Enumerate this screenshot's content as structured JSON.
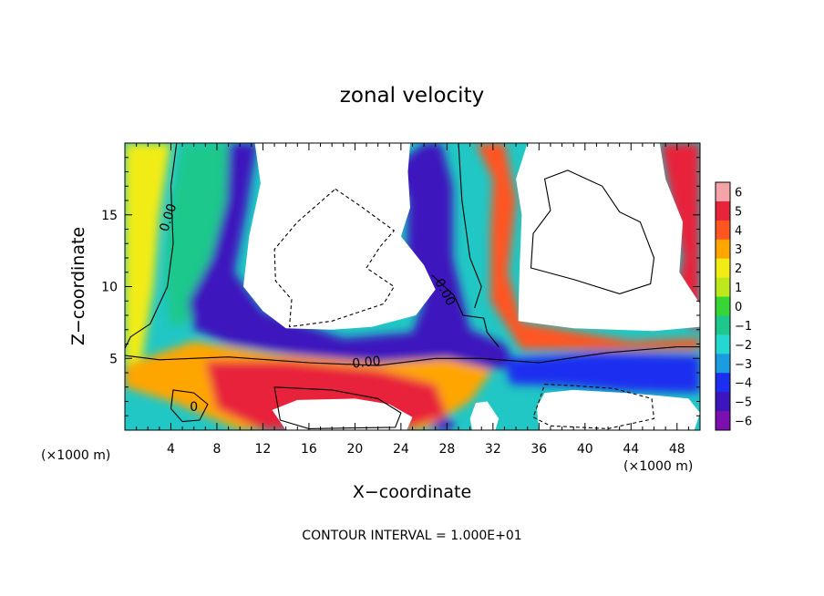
{
  "chart_data": {
    "type": "heatmap",
    "title": "zonal velocity",
    "xlabel": "X−coordinate",
    "ylabel": "Z−coordinate",
    "x_unit_note": "(×1000 m)",
    "z_unit_note": "(×1000 m)",
    "footer": "CONTOUR INTERVAL = 1.000E+01",
    "xlim": [
      0,
      50
    ],
    "ylim": [
      0,
      20
    ],
    "x_ticks": [
      4,
      8,
      12,
      16,
      20,
      24,
      28,
      32,
      36,
      40,
      44,
      48
    ],
    "y_ticks": [
      5,
      10,
      15
    ],
    "grid": false,
    "colorbar": {
      "levels": [
        6,
        5,
        4,
        3,
        2,
        1,
        0,
        -1,
        -2,
        -3,
        -4,
        -5,
        -6
      ],
      "level_labels": [
        "6",
        "5",
        "4",
        "3",
        "2",
        "1",
        "0",
        "−1",
        "−2",
        "−3",
        "−4",
        "−5",
        "−6"
      ],
      "colors": [
        "#f4a3a8",
        "#e8243a",
        "#ff5520",
        "#ffa500",
        "#f2ec16",
        "#bde81e",
        "#35d635",
        "#1ec88c",
        "#24d7d1",
        "#1b9be0",
        "#1c2ef0",
        "#3d15bd",
        "#7b0fb0"
      ]
    },
    "contour_labels": [
      {
        "text": "0.00",
        "x": 3.8,
        "z": 14.8,
        "angle": -72
      },
      {
        "text": "0.00",
        "x": 27.8,
        "z": 9.6,
        "angle": 62
      },
      {
        "text": "0.00",
        "x": 21,
        "z": 4.7,
        "angle": -6
      },
      {
        "text": "0",
        "x": 6,
        "z": 1.6,
        "angle": 0
      }
    ],
    "regions": [
      {
        "name": "west-boundary-positive",
        "level": 4,
        "points": [
          [
            0,
            20
          ],
          [
            2.5,
            20
          ],
          [
            2,
            16
          ],
          [
            1.8,
            11
          ],
          [
            1.5,
            6.5
          ],
          [
            0,
            5
          ]
        ]
      },
      {
        "name": "west-mid-positive",
        "level": 2,
        "points": [
          [
            0,
            20
          ],
          [
            4,
            20
          ],
          [
            3,
            15
          ],
          [
            2.5,
            10
          ],
          [
            1.5,
            5
          ],
          [
            0,
            4.5
          ]
        ]
      },
      {
        "name": "central-jet-return",
        "level": -1,
        "points": [
          [
            5,
            20
          ],
          [
            10.5,
            20
          ],
          [
            9.5,
            15
          ],
          [
            8.5,
            11
          ],
          [
            7,
            8
          ],
          [
            4,
            7.2
          ],
          [
            3.5,
            10
          ],
          [
            3.8,
            15
          ]
        ]
      },
      {
        "name": "central-jet-core",
        "level": -5,
        "points": [
          [
            9,
            20
          ],
          [
            11.5,
            20
          ],
          [
            10.5,
            15
          ],
          [
            9.5,
            11
          ],
          [
            12,
            8.3
          ],
          [
            19,
            6.4
          ],
          [
            25,
            6.8
          ],
          [
            26,
            9
          ],
          [
            24.5,
            12
          ],
          [
            24.6,
            16
          ],
          [
            23.5,
            18.4
          ],
          [
            26,
            20
          ],
          [
            27.5,
            20
          ],
          [
            28.5,
            17
          ],
          [
            28.5,
            12
          ],
          [
            30,
            7
          ],
          [
            33,
            6
          ],
          [
            34,
            4.5
          ],
          [
            30,
            4
          ],
          [
            23,
            4.6
          ],
          [
            15,
            5.2
          ],
          [
            9,
            6
          ],
          [
            6,
            7
          ],
          [
            5.5,
            9
          ],
          [
            7.5,
            12
          ],
          [
            8.8,
            16
          ]
        ]
      },
      {
        "name": "lower-band-warm",
        "level": 3,
        "points": [
          [
            0,
            4.5
          ],
          [
            6,
            6.2
          ],
          [
            13,
            5.3
          ],
          [
            22,
            4.7
          ],
          [
            28,
            5
          ],
          [
            32,
            4.2
          ],
          [
            30,
            2
          ],
          [
            26,
            0
          ],
          [
            10,
            0
          ],
          [
            4,
            2
          ],
          [
            0,
            3
          ]
        ]
      },
      {
        "name": "lower-band-hot",
        "level": 5,
        "points": [
          [
            7,
            4.8
          ],
          [
            14,
            4.8
          ],
          [
            22,
            4.2
          ],
          [
            27,
            3.2
          ],
          [
            28,
            1
          ],
          [
            24,
            0
          ],
          [
            12,
            0
          ],
          [
            8,
            1.5
          ]
        ]
      },
      {
        "name": "east-rising-warm",
        "level": 4,
        "points": [
          [
            30.5,
            20
          ],
          [
            33,
            20
          ],
          [
            34,
            16
          ],
          [
            33.3,
            11
          ],
          [
            34.5,
            7.5
          ],
          [
            44,
            6.2
          ],
          [
            50,
            6.4
          ],
          [
            50,
            5.6
          ],
          [
            42,
            5.6
          ],
          [
            34.5,
            5.6
          ],
          [
            31.8,
            9
          ],
          [
            31.8,
            14
          ],
          [
            32,
            17.5
          ]
        ]
      },
      {
        "name": "east-near-surface-cold",
        "level": -4,
        "points": [
          [
            33,
            5
          ],
          [
            41,
            5.4
          ],
          [
            50,
            5.2
          ],
          [
            50,
            2.6
          ],
          [
            44,
            2.7
          ],
          [
            38,
            3.1
          ],
          [
            33.5,
            3.2
          ]
        ]
      },
      {
        "name": "east-boundary-positive",
        "level": 5,
        "points": [
          [
            46.5,
            20
          ],
          [
            50,
            20
          ],
          [
            50,
            6.9
          ],
          [
            47.5,
            8
          ],
          [
            48.5,
            12
          ],
          [
            47.5,
            16
          ]
        ]
      },
      {
        "name": "bottom-jet-cold",
        "level": -5,
        "points": [
          [
            26.3,
            0
          ],
          [
            28.5,
            0
          ],
          [
            28.6,
            0.7
          ],
          [
            27.4,
            0.8
          ]
        ]
      }
    ],
    "contours": [
      {
        "name": "zero-line-west",
        "dashed": false,
        "points": [
          [
            4.5,
            20
          ],
          [
            4,
            17
          ],
          [
            4.2,
            13
          ],
          [
            3.7,
            10
          ],
          [
            2.2,
            7.4
          ],
          [
            0.5,
            6.5
          ],
          [
            0,
            5.7
          ]
        ]
      },
      {
        "name": "zero-line-mid",
        "dashed": false,
        "points": [
          [
            0,
            5.2
          ],
          [
            3,
            4.9
          ],
          [
            9,
            5.1
          ],
          [
            16,
            4.7
          ],
          [
            22,
            4.5
          ],
          [
            27,
            5
          ],
          [
            31,
            5
          ],
          [
            36,
            4.7
          ],
          [
            42,
            5.4
          ],
          [
            48,
            5.8
          ],
          [
            50,
            5.8
          ]
        ]
      },
      {
        "name": "zero-line-jet",
        "dashed": false,
        "points": [
          [
            26.7,
            10.8
          ],
          [
            28.6,
            9.4
          ],
          [
            29.4,
            8
          ],
          [
            31.2,
            7.8
          ],
          [
            31.5,
            6.8
          ],
          [
            32.5,
            5.8
          ]
        ]
      },
      {
        "name": "zero-line-east",
        "dashed": false,
        "points": [
          [
            29,
            20
          ],
          [
            29.3,
            16
          ],
          [
            30,
            12
          ],
          [
            31,
            10
          ],
          [
            30.4,
            8.5
          ]
        ]
      },
      {
        "name": "east-upper-cell",
        "dashed": false,
        "points": [
          [
            36.5,
            17.5
          ],
          [
            38.5,
            18.1
          ],
          [
            41.5,
            17
          ],
          [
            43,
            15.2
          ],
          [
            44.8,
            14.5
          ],
          [
            46,
            12
          ],
          [
            45.7,
            10.2
          ],
          [
            43,
            9.5
          ],
          [
            39,
            10.5
          ],
          [
            35.3,
            11.3
          ],
          [
            35.5,
            13.7
          ],
          [
            37,
            15.3
          ]
        ]
      },
      {
        "name": "central-cell",
        "dashed": true,
        "points": [
          [
            18.3,
            16.8
          ],
          [
            20.5,
            15.6
          ],
          [
            23.4,
            13.9
          ],
          [
            22.2,
            12.8
          ],
          [
            21,
            11.3
          ],
          [
            23.4,
            10
          ],
          [
            22.5,
            8.8
          ],
          [
            18,
            7.6
          ],
          [
            14.3,
            7.2
          ],
          [
            14.5,
            9.1
          ],
          [
            13.1,
            10.4
          ],
          [
            13,
            12.6
          ],
          [
            15,
            14.5
          ]
        ]
      },
      {
        "name": "lower-cell-east",
        "dashed": true,
        "points": [
          [
            36.5,
            3.2
          ],
          [
            39,
            3.1
          ],
          [
            42.5,
            2.9
          ],
          [
            45.8,
            2.2
          ],
          [
            46,
            0.8
          ],
          [
            42,
            0.1
          ],
          [
            37,
            0.3
          ],
          [
            35.5,
            0.9
          ],
          [
            36,
            2
          ]
        ]
      },
      {
        "name": "lower-cell-west",
        "dashed": false,
        "points": [
          [
            13,
            3
          ],
          [
            18,
            2.8
          ],
          [
            22,
            2.2
          ],
          [
            24,
            1.2
          ],
          [
            23.5,
            0.2
          ],
          [
            16,
            0.1
          ],
          [
            13.5,
            0.7
          ]
        ]
      },
      {
        "name": "left-small-cell",
        "dashed": false,
        "points": [
          [
            4.2,
            2.8
          ],
          [
            6,
            2.6
          ],
          [
            7.2,
            1.8
          ],
          [
            6.5,
            0.7
          ],
          [
            5,
            0.6
          ],
          [
            4,
            1.5
          ]
        ]
      }
    ],
    "undefined_regions": [
      {
        "name": "upper-left-blank",
        "points": [
          [
            11.3,
            20
          ],
          [
            24.8,
            20
          ],
          [
            24.6,
            18
          ],
          [
            24.8,
            15.5
          ],
          [
            24,
            13.5
          ],
          [
            26,
            11.5
          ],
          [
            27,
            9.8
          ],
          [
            25.3,
            8
          ],
          [
            21.5,
            7.2
          ],
          [
            18,
            7
          ],
          [
            14,
            7.1
          ],
          [
            12,
            8.3
          ],
          [
            10.3,
            10
          ],
          [
            10.8,
            13.5
          ],
          [
            11.8,
            17.2
          ]
        ]
      },
      {
        "name": "upper-right-blank",
        "points": [
          [
            35,
            20
          ],
          [
            46.5,
            20
          ],
          [
            47,
            17.5
          ],
          [
            48.5,
            14.5
          ],
          [
            48.2,
            11
          ],
          [
            50,
            8.8
          ],
          [
            50,
            7.2
          ],
          [
            46,
            6.9
          ],
          [
            39,
            7.1
          ],
          [
            34.2,
            7.6
          ],
          [
            34.3,
            11
          ],
          [
            34.5,
            15
          ],
          [
            34,
            17.5
          ]
        ]
      },
      {
        "name": "lower-right-blank",
        "points": [
          [
            36,
            0
          ],
          [
            49.5,
            0
          ],
          [
            50,
            1.2
          ],
          [
            49,
            2.2
          ],
          [
            46.5,
            2.4
          ],
          [
            43.5,
            2.6
          ],
          [
            39,
            2.8
          ],
          [
            36.5,
            2.6
          ],
          [
            35.8,
            1.6
          ]
        ]
      },
      {
        "name": "lower-left-blank",
        "points": [
          [
            14,
            0
          ],
          [
            24.5,
            0
          ],
          [
            25,
            0.9
          ],
          [
            23,
            1.8
          ],
          [
            20,
            2.2
          ],
          [
            15,
            2.1
          ],
          [
            12.8,
            1.4
          ]
        ]
      },
      {
        "name": "lower-mid-blank",
        "points": [
          [
            30.2,
            0
          ],
          [
            32.2,
            0
          ],
          [
            32.5,
            0.8
          ],
          [
            31.5,
            2
          ],
          [
            30.5,
            1.9
          ],
          [
            30,
            0.8
          ]
        ]
      }
    ]
  }
}
